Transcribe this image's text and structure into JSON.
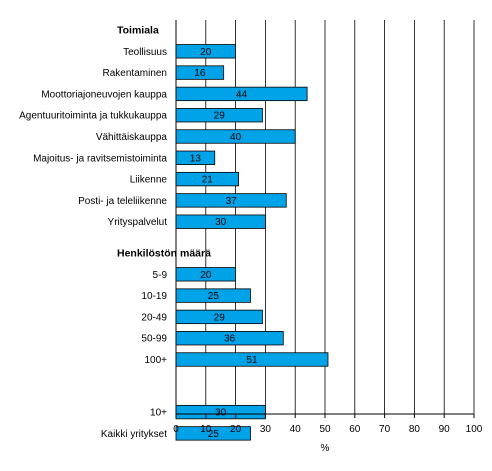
{
  "chart_data": {
    "type": "bar",
    "orientation": "horizontal",
    "xlabel": "%",
    "xlim": [
      0,
      100
    ],
    "xticks": [
      0,
      10,
      20,
      30,
      40,
      50,
      60,
      70,
      80,
      90,
      100
    ],
    "grid": "vertical",
    "bar_color": "#00a3e8",
    "groups": [
      {
        "title": "Toimiala",
        "categories": [
          "Teollisuus",
          "Rakentaminen",
          "Moottoriajoneuvojen kauppa",
          "Agentuuritoiminta ja tukkukauppa",
          "Vähittäiskauppa",
          "Majoitus- ja ravitsemistoiminta",
          "Liikenne",
          "Posti- ja teleliikenne",
          "Yrityspalvelut"
        ],
        "values": [
          20,
          16,
          44,
          29,
          40,
          13,
          21,
          37,
          30
        ]
      },
      {
        "title": "Henkilöstön määrä",
        "categories": [
          "5-9",
          "10-19",
          "20-49",
          "50-99",
          "100+"
        ],
        "values": [
          20,
          25,
          29,
          36,
          51
        ]
      },
      {
        "title": "",
        "categories": [
          "10+",
          "Kaikki yritykset"
        ],
        "values": [
          30,
          25
        ]
      }
    ]
  }
}
